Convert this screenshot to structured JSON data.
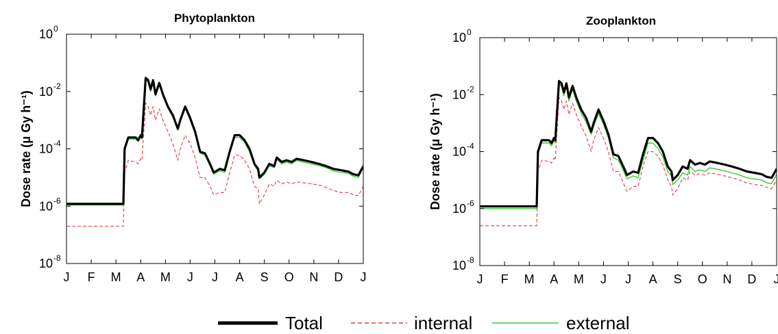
{
  "chart_data": [
    {
      "type": "line",
      "title": "Phytoplankton",
      "ylabel": "Dose rate (μ Gy h⁻¹)",
      "yscale": "log",
      "ylim": [
        1e-08,
        1
      ],
      "yticks": [
        {
          "base": "10",
          "exp": "0"
        },
        {
          "base": "10",
          "exp": "-2"
        },
        {
          "base": "10",
          "exp": "-4"
        },
        {
          "base": "10",
          "exp": "-6"
        },
        {
          "base": "10",
          "exp": "-8"
        }
      ],
      "x_categories": [
        "J",
        "F",
        "M",
        "A",
        "M",
        "J",
        "J",
        "A",
        "S",
        "O",
        "N",
        "D",
        "J"
      ],
      "xlim": [
        0,
        12
      ],
      "series": [
        {
          "name": "Total",
          "color": "#000000",
          "style": "solid-thick",
          "x": [
            0,
            2.3,
            2.35,
            2.5,
            2.8,
            2.9,
            3.0,
            3.05,
            3.2,
            3.3,
            3.4,
            3.5,
            3.6,
            3.75,
            3.9,
            4.1,
            4.3,
            4.5,
            4.6,
            4.8,
            5.0,
            5.2,
            5.4,
            5.6,
            5.8,
            5.95,
            6.2,
            6.4,
            6.6,
            6.8,
            7.0,
            7.2,
            7.4,
            7.6,
            7.75,
            7.8,
            8.0,
            8.2,
            8.4,
            8.5,
            8.7,
            8.9,
            9.1,
            9.3,
            9.6,
            9.9,
            10.2,
            10.5,
            10.8,
            11.1,
            11.4,
            11.6,
            11.8,
            12.0
          ],
          "y": [
            1.2e-06,
            1.2e-06,
            0.0001,
            0.00025,
            0.00025,
            0.0002,
            0.0003,
            0.00025,
            0.03,
            0.025,
            0.012,
            0.025,
            0.008,
            0.02,
            0.008,
            0.003,
            0.0015,
            0.0005,
            0.001,
            0.003,
            0.0012,
            0.0004,
            8e-05,
            7e-05,
            3e-05,
            1.5e-05,
            2e-05,
            1.8e-05,
            8e-05,
            0.0003,
            0.0003,
            0.0002,
            0.0001,
            3e-05,
            2e-05,
            1e-05,
            1.5e-05,
            3e-05,
            2.5e-05,
            5e-05,
            3.5e-05,
            4e-05,
            3.5e-05,
            4.5e-05,
            4e-05,
            3.5e-05,
            3e-05,
            2.5e-05,
            2e-05,
            1.8e-05,
            1.6e-05,
            1.3e-05,
            1.2e-05,
            2.5e-05
          ]
        },
        {
          "name": "internal",
          "color": "#e8364a",
          "style": "dashed",
          "x": [
            0,
            2.3,
            2.35,
            2.5,
            2.8,
            2.9,
            3.0,
            3.05,
            3.2,
            3.3,
            3.4,
            3.5,
            3.6,
            3.75,
            3.9,
            4.1,
            4.3,
            4.5,
            4.6,
            4.8,
            5.0,
            5.2,
            5.4,
            5.6,
            5.8,
            5.95,
            6.2,
            6.4,
            6.6,
            6.8,
            7.0,
            7.2,
            7.4,
            7.6,
            7.75,
            7.8,
            8.0,
            8.2,
            8.4,
            8.5,
            8.7,
            8.9,
            9.1,
            9.3,
            9.6,
            9.9,
            10.2,
            10.5,
            10.8,
            11.1,
            11.4,
            11.6,
            11.8,
            12.0
          ],
          "y": [
            2e-07,
            2e-07,
            1.5e-05,
            4e-05,
            3.5e-05,
            3e-05,
            4.5e-05,
            4e-05,
            0.004,
            0.003,
            0.0015,
            0.003,
            0.001,
            0.0025,
            0.001,
            0.0004,
            0.00015,
            4e-05,
            0.0001,
            0.0003,
            0.00015,
            5e-05,
            1e-05,
            1e-05,
            5e-06,
            2.5e-06,
            3e-06,
            3e-06,
            1.5e-05,
            6e-05,
            6e-05,
            4e-05,
            2e-05,
            5e-06,
            4e-06,
            1.2e-06,
            2.5e-06,
            6e-06,
            5e-06,
            8e-06,
            6e-06,
            7e-06,
            6e-06,
            7e-06,
            6.5e-06,
            6e-06,
            5.5e-06,
            4.5e-06,
            3.5e-06,
            3e-06,
            3e-06,
            2.5e-06,
            2.3e-06,
            5e-06
          ]
        },
        {
          "name": "external",
          "color": "#33cc33",
          "style": "solid",
          "x": [
            0,
            2.3,
            2.35,
            2.5,
            2.8,
            2.9,
            3.0,
            3.05,
            3.2,
            3.3,
            3.4,
            3.5,
            3.6,
            3.75,
            3.9,
            4.1,
            4.3,
            4.5,
            4.6,
            4.8,
            5.0,
            5.2,
            5.4,
            5.6,
            5.8,
            5.95,
            6.2,
            6.4,
            6.6,
            6.8,
            7.0,
            7.2,
            7.4,
            7.6,
            7.75,
            7.8,
            8.0,
            8.2,
            8.4,
            8.5,
            8.7,
            8.9,
            9.1,
            9.3,
            9.6,
            9.9,
            10.2,
            10.5,
            10.8,
            11.1,
            11.4,
            11.6,
            11.8,
            12.0
          ],
          "y": [
            1.1e-06,
            1.1e-06,
            9e-05,
            0.00022,
            0.00022,
            0.00018,
            0.00026,
            0.00022,
            0.026,
            0.022,
            0.01,
            0.022,
            0.007,
            0.017,
            0.007,
            0.0026,
            0.0013,
            0.00045,
            0.0009,
            0.0026,
            0.001,
            0.00035,
            7e-05,
            6e-05,
            2.6e-05,
            1.3e-05,
            1.7e-05,
            1.5e-05,
            7e-05,
            0.00025,
            0.00025,
            0.00017,
            8e-05,
            2.6e-05,
            1.7e-05,
            9e-06,
            1.3e-05,
            2.6e-05,
            2.2e-05,
            4.3e-05,
            3e-05,
            3.4e-05,
            3e-05,
            3.9e-05,
            3.4e-05,
            3e-05,
            2.6e-05,
            2.2e-05,
            1.7e-05,
            1.5e-05,
            1.4e-05,
            1.1e-05,
            1e-05,
            2.2e-05
          ]
        }
      ]
    },
    {
      "type": "line",
      "title": "Zooplankton",
      "ylabel": "Dose rate (μ Gy h⁻¹)",
      "yscale": "log",
      "ylim": [
        1e-08,
        1
      ],
      "yticks": [
        {
          "base": "10",
          "exp": "0"
        },
        {
          "base": "10",
          "exp": "-2"
        },
        {
          "base": "10",
          "exp": "-4"
        },
        {
          "base": "10",
          "exp": "-6"
        },
        {
          "base": "10",
          "exp": "-8"
        }
      ],
      "x_categories": [
        "J",
        "F",
        "M",
        "A",
        "M",
        "J",
        "J",
        "A",
        "S",
        "O",
        "N",
        "D",
        "J"
      ],
      "xlim": [
        0,
        12
      ],
      "series": [
        {
          "name": "Total",
          "color": "#000000",
          "style": "solid-thick",
          "x": [
            0,
            2.3,
            2.35,
            2.5,
            2.8,
            2.9,
            3.0,
            3.05,
            3.2,
            3.3,
            3.4,
            3.5,
            3.6,
            3.75,
            3.9,
            4.1,
            4.3,
            4.5,
            4.6,
            4.8,
            5.0,
            5.2,
            5.4,
            5.6,
            5.8,
            5.95,
            6.2,
            6.4,
            6.6,
            6.8,
            7.0,
            7.2,
            7.4,
            7.6,
            7.75,
            7.8,
            8.0,
            8.2,
            8.4,
            8.5,
            8.7,
            8.9,
            9.1,
            9.3,
            9.6,
            9.9,
            10.2,
            10.5,
            10.8,
            11.1,
            11.4,
            11.6,
            11.8,
            12.0
          ],
          "y": [
            1.2e-06,
            1.2e-06,
            0.0001,
            0.00025,
            0.00025,
            0.0002,
            0.0003,
            0.00025,
            0.03,
            0.025,
            0.012,
            0.025,
            0.008,
            0.02,
            0.008,
            0.003,
            0.0015,
            0.0005,
            0.001,
            0.003,
            0.0012,
            0.0004,
            8e-05,
            7e-05,
            3e-05,
            1.5e-05,
            2e-05,
            1.8e-05,
            8e-05,
            0.0003,
            0.0003,
            0.0002,
            0.0001,
            3e-05,
            2e-05,
            1e-05,
            1.5e-05,
            3e-05,
            2.5e-05,
            5e-05,
            3.5e-05,
            4e-05,
            3.5e-05,
            4.5e-05,
            4e-05,
            3.5e-05,
            3e-05,
            2.5e-05,
            2e-05,
            1.8e-05,
            1.6e-05,
            1.3e-05,
            1.2e-05,
            2.5e-05
          ]
        },
        {
          "name": "internal",
          "color": "#e8364a",
          "style": "dashed",
          "x": [
            0,
            2.3,
            2.35,
            2.5,
            2.8,
            2.9,
            3.0,
            3.05,
            3.2,
            3.3,
            3.4,
            3.5,
            3.6,
            3.75,
            3.9,
            4.1,
            4.3,
            4.5,
            4.6,
            4.8,
            5.0,
            5.2,
            5.4,
            5.6,
            5.8,
            5.95,
            6.2,
            6.4,
            6.6,
            6.8,
            7.0,
            7.2,
            7.4,
            7.6,
            7.75,
            7.8,
            8.0,
            8.2,
            8.4,
            8.5,
            8.7,
            8.9,
            9.1,
            9.3,
            9.6,
            9.9,
            10.2,
            10.5,
            10.8,
            11.1,
            11.4,
            11.6,
            11.8,
            12.0
          ],
          "y": [
            2.5e-07,
            2.5e-07,
            2e-05,
            5e-05,
            4.5e-05,
            4e-05,
            6e-05,
            5e-05,
            0.008,
            0.006,
            0.003,
            0.006,
            0.002,
            0.005,
            0.002,
            0.0008,
            0.00035,
            0.0001,
            0.00025,
            0.0007,
            0.0003,
            0.0001,
            2e-05,
            2e-05,
            8e-06,
            4e-06,
            6e-06,
            6e-06,
            3e-05,
            0.0001,
            0.0001,
            7e-05,
            3.5e-05,
            1e-05,
            6e-06,
            3e-06,
            5e-06,
            1.2e-05,
            1e-05,
            2e-05,
            1.5e-05,
            1.7e-05,
            1.5e-05,
            1.8e-05,
            1.6e-05,
            1.4e-05,
            1.2e-05,
            1e-05,
            8e-06,
            7e-06,
            6.5e-06,
            5.5e-06,
            5e-06,
            1e-05
          ]
        },
        {
          "name": "external",
          "color": "#33cc33",
          "style": "solid",
          "x": [
            0,
            2.3,
            2.35,
            2.5,
            2.8,
            2.9,
            3.0,
            3.05,
            3.2,
            3.3,
            3.4,
            3.5,
            3.6,
            3.75,
            3.9,
            4.1,
            4.3,
            4.5,
            4.6,
            4.8,
            5.0,
            5.2,
            5.4,
            5.6,
            5.8,
            5.95,
            6.2,
            6.4,
            6.6,
            6.8,
            7.0,
            7.2,
            7.4,
            7.6,
            7.75,
            7.8,
            8.0,
            8.2,
            8.4,
            8.5,
            8.7,
            8.9,
            9.1,
            9.3,
            9.6,
            9.9,
            10.2,
            10.5,
            10.8,
            11.1,
            11.4,
            11.6,
            11.8,
            12.0
          ],
          "y": [
            1e-06,
            1e-06,
            8e-05,
            0.0002,
            0.0002,
            0.00016,
            0.00024,
            0.0002,
            0.024,
            0.02,
            0.009,
            0.02,
            0.006,
            0.015,
            0.006,
            0.0022,
            0.0011,
            0.0004,
            0.00075,
            0.0022,
            0.0009,
            0.0003,
            6e-05,
            5e-05,
            2.2e-05,
            1.1e-05,
            1.4e-05,
            1.2e-05,
            5e-05,
            0.0002,
            0.0002,
            0.00013,
            6.5e-05,
            2e-05,
            1.4e-05,
            7e-06,
            1e-05,
            1.8e-05,
            1.5e-05,
            3e-05,
            2e-05,
            2.3e-05,
            2e-05,
            2.7e-05,
            2.4e-05,
            2.1e-05,
            1.8e-05,
            1.5e-05,
            1.2e-05,
            1.1e-05,
            1e-05,
            8e-06,
            7.5e-06,
            1.6e-05
          ]
        }
      ]
    }
  ],
  "legend": {
    "placement": "bottom-center",
    "items": [
      {
        "label": "Total",
        "color": "#000000",
        "style": "solid-thick"
      },
      {
        "label": "internal",
        "color": "#e8364a",
        "style": "dashed"
      },
      {
        "label": "external",
        "color": "#33cc33",
        "style": "solid"
      }
    ]
  }
}
